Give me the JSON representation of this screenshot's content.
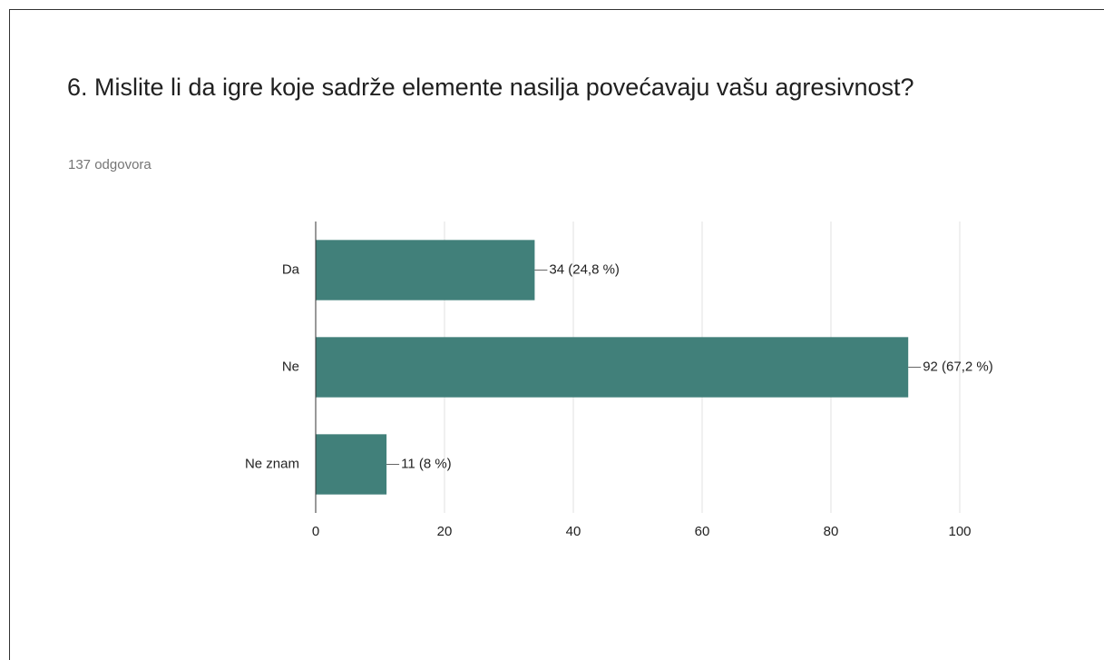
{
  "chart_data": {
    "type": "bar",
    "orientation": "horizontal",
    "title": "6. Mislite li da igre koje sadrže elemente nasilja povećavaju vašu agresivnost?",
    "subtitle": "137 odgovora",
    "categories": [
      "Da",
      "Ne",
      "Ne znam"
    ],
    "values": [
      34,
      92,
      11
    ],
    "value_labels": [
      "34 (24,8 %)",
      "92 (67,2 %)",
      "11 (8 %)"
    ],
    "color": "#41807a",
    "xlim": [
      0,
      100
    ],
    "xticks": [
      0,
      20,
      40,
      60,
      80,
      100
    ],
    "grid": true
  }
}
